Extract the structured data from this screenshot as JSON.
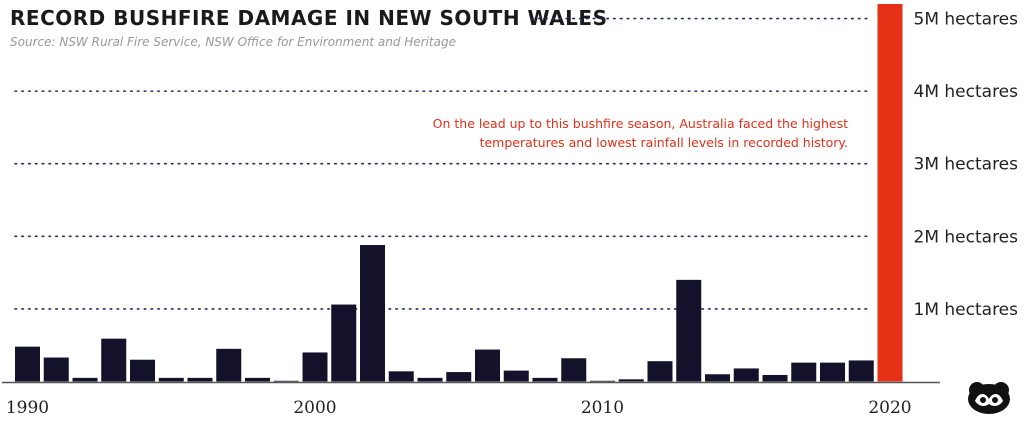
{
  "chart_data": {
    "type": "bar",
    "title": "RECORD BUSHFIRE DAMAGE IN NEW SOUTH WALES",
    "subtitle": "Source: NSW Rural Fire Service, NSW Office for Environment and Heritage",
    "annotation": "On the lead up to this bushfire season, Australia faced the highest temperatures and lowest rainfall levels in recorded history.",
    "ylabel": "hectares",
    "ylim": [
      0,
      5200000
    ],
    "yticks": [
      {
        "value": 1000000,
        "label": "1M hectares"
      },
      {
        "value": 2000000,
        "label": "2M hectares"
      },
      {
        "value": 3000000,
        "label": "3M hectares"
      },
      {
        "value": 4000000,
        "label": "4M hectares"
      },
      {
        "value": 5000000,
        "label": "5M hectares"
      }
    ],
    "xticks": [
      {
        "year": 1990,
        "label": "1990"
      },
      {
        "year": 2000,
        "label": "2000"
      },
      {
        "year": 2010,
        "label": "2010"
      },
      {
        "year": 2020,
        "label": "2020"
      }
    ],
    "categories": [
      1990,
      1991,
      1992,
      1993,
      1994,
      1995,
      1996,
      1997,
      1998,
      1999,
      2000,
      2001,
      2002,
      2003,
      2004,
      2005,
      2006,
      2007,
      2008,
      2009,
      2010,
      2011,
      2012,
      2013,
      2014,
      2015,
      2016,
      2017,
      2018,
      2019,
      2020
    ],
    "values": [
      480000,
      330000,
      50000,
      590000,
      300000,
      50000,
      50000,
      450000,
      50000,
      10000,
      400000,
      1060000,
      1880000,
      140000,
      50000,
      130000,
      440000,
      150000,
      50000,
      320000,
      10000,
      30000,
      280000,
      1400000,
      100000,
      180000,
      90000,
      260000,
      260000,
      290000,
      5200000
    ],
    "highlight_category": 2020,
    "bar_color": "#14112b",
    "highlight_color": "#e63117",
    "grid": "dotted",
    "legend": "none"
  }
}
